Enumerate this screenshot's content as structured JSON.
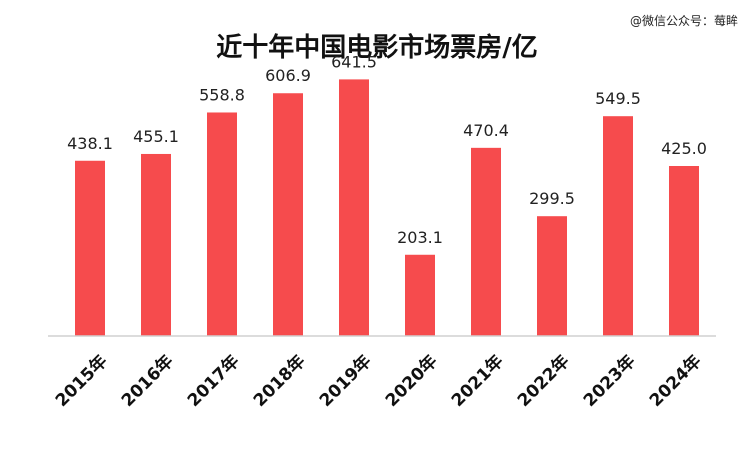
{
  "watermark": "@微信公众号：莓眸",
  "chart_data": {
    "type": "bar",
    "title": "近十年中国电影市场票房/亿",
    "categories": [
      "2015年",
      "2016年",
      "2017年",
      "2018年",
      "2019年",
      "2020年",
      "2021年",
      "2022年",
      "2023年",
      "2024年"
    ],
    "values": [
      438.1,
      455.1,
      558.8,
      606.9,
      641.5,
      203.1,
      470.4,
      299.5,
      549.5,
      425.0
    ],
    "value_labels": [
      "438.1",
      "455.1",
      "558.8",
      "606.9",
      "641.5",
      "203.1",
      "470.4",
      "299.5",
      "549.5",
      "425.0"
    ],
    "ylim": [
      0,
      750
    ],
    "grid": false,
    "colors": {
      "bar": "#f64b4d",
      "baseline": "#d0d0d0",
      "text": "#222222"
    }
  }
}
